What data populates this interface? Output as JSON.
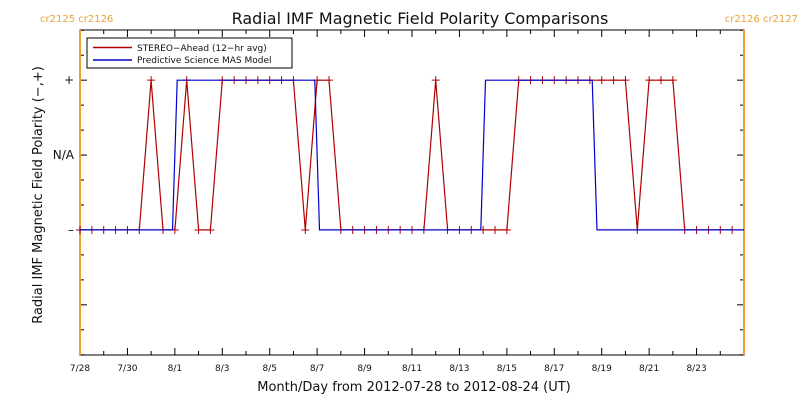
{
  "chart_data": {
    "type": "line",
    "title": "Radial IMF Magnetic Field Polarity Comparisons",
    "xlabel": "Month/Day from 2012-07-28 to 2012-08-24 (UT)",
    "ylabel": "Radial IMF Magnetic Field Polarity (−,+)",
    "xlim": [
      0,
      28
    ],
    "ylim": [
      -1.67,
      2.67
    ],
    "x_ticks": [
      {
        "x": 0,
        "label": "7/28"
      },
      {
        "x": 2,
        "label": "7/30"
      },
      {
        "x": 4,
        "label": "8/1"
      },
      {
        "x": 6,
        "label": "8/3"
      },
      {
        "x": 8,
        "label": "8/5"
      },
      {
        "x": 10,
        "label": "8/7"
      },
      {
        "x": 12,
        "label": "8/9"
      },
      {
        "x": 14,
        "label": "8/11"
      },
      {
        "x": 16,
        "label": "8/13"
      },
      {
        "x": 18,
        "label": "8/15"
      },
      {
        "x": 20,
        "label": "8/17"
      },
      {
        "x": 22,
        "label": "8/19"
      },
      {
        "x": 24,
        "label": "8/21"
      },
      {
        "x": 26,
        "label": "8/23"
      }
    ],
    "y_ticks": [
      {
        "y": 2,
        "label": "+"
      },
      {
        "y": 1,
        "label": "N/A"
      },
      {
        "y": 0,
        "label": "–"
      }
    ],
    "cr_boundaries": [
      {
        "x": 0,
        "labels": "cr2125 cr2126",
        "align": "left"
      },
      {
        "x": 28,
        "labels": "cr2126 cr2127",
        "align": "right"
      }
    ],
    "legend": {
      "position": "top-left",
      "entries": [
        "STEREO−Ahead (12−hr avg)",
        "Predictive Science MAS Model"
      ]
    },
    "series": [
      {
        "name": "STEREO−Ahead (12−hr avg)",
        "color": "#b00000",
        "markers": true,
        "x": [
          0,
          0.5,
          1,
          1.5,
          2,
          2.5,
          3,
          3.5,
          4,
          4.5,
          5,
          5.5,
          6,
          6.5,
          7,
          7.5,
          8,
          8.5,
          9,
          9.5,
          10,
          10.5,
          11,
          11.5,
          12,
          12.5,
          13,
          13.5,
          14,
          14.5,
          15,
          15.5,
          16,
          16.5,
          17,
          17.5,
          18,
          18.5,
          19,
          19.5,
          20,
          20.5,
          21,
          21.5,
          22,
          22.5,
          23,
          23.5,
          24,
          24.5,
          25,
          25.5,
          26,
          26.5,
          27,
          27.5
        ],
        "y": [
          0,
          0,
          0,
          0,
          0,
          0,
          2,
          0,
          0,
          2,
          0,
          0,
          2,
          2,
          2,
          2,
          2,
          2,
          2,
          0,
          2,
          2,
          0,
          0,
          0,
          0,
          0,
          0,
          0,
          0,
          2,
          0,
          0,
          0,
          0,
          0,
          0,
          2,
          2,
          2,
          2,
          2,
          2,
          2,
          2,
          2,
          2,
          0,
          2,
          2,
          2,
          0,
          0,
          0,
          0,
          0
        ]
      },
      {
        "name": "Predictive Science MAS Model",
        "color": "#0000cc",
        "markers": false,
        "x": [
          0,
          3.9,
          4.1,
          9.9,
          10.1,
          16.9,
          17.1,
          21.6,
          21.8,
          28
        ],
        "y": [
          0,
          0,
          2,
          2,
          0,
          0,
          2,
          2,
          0,
          0
        ]
      }
    ]
  }
}
